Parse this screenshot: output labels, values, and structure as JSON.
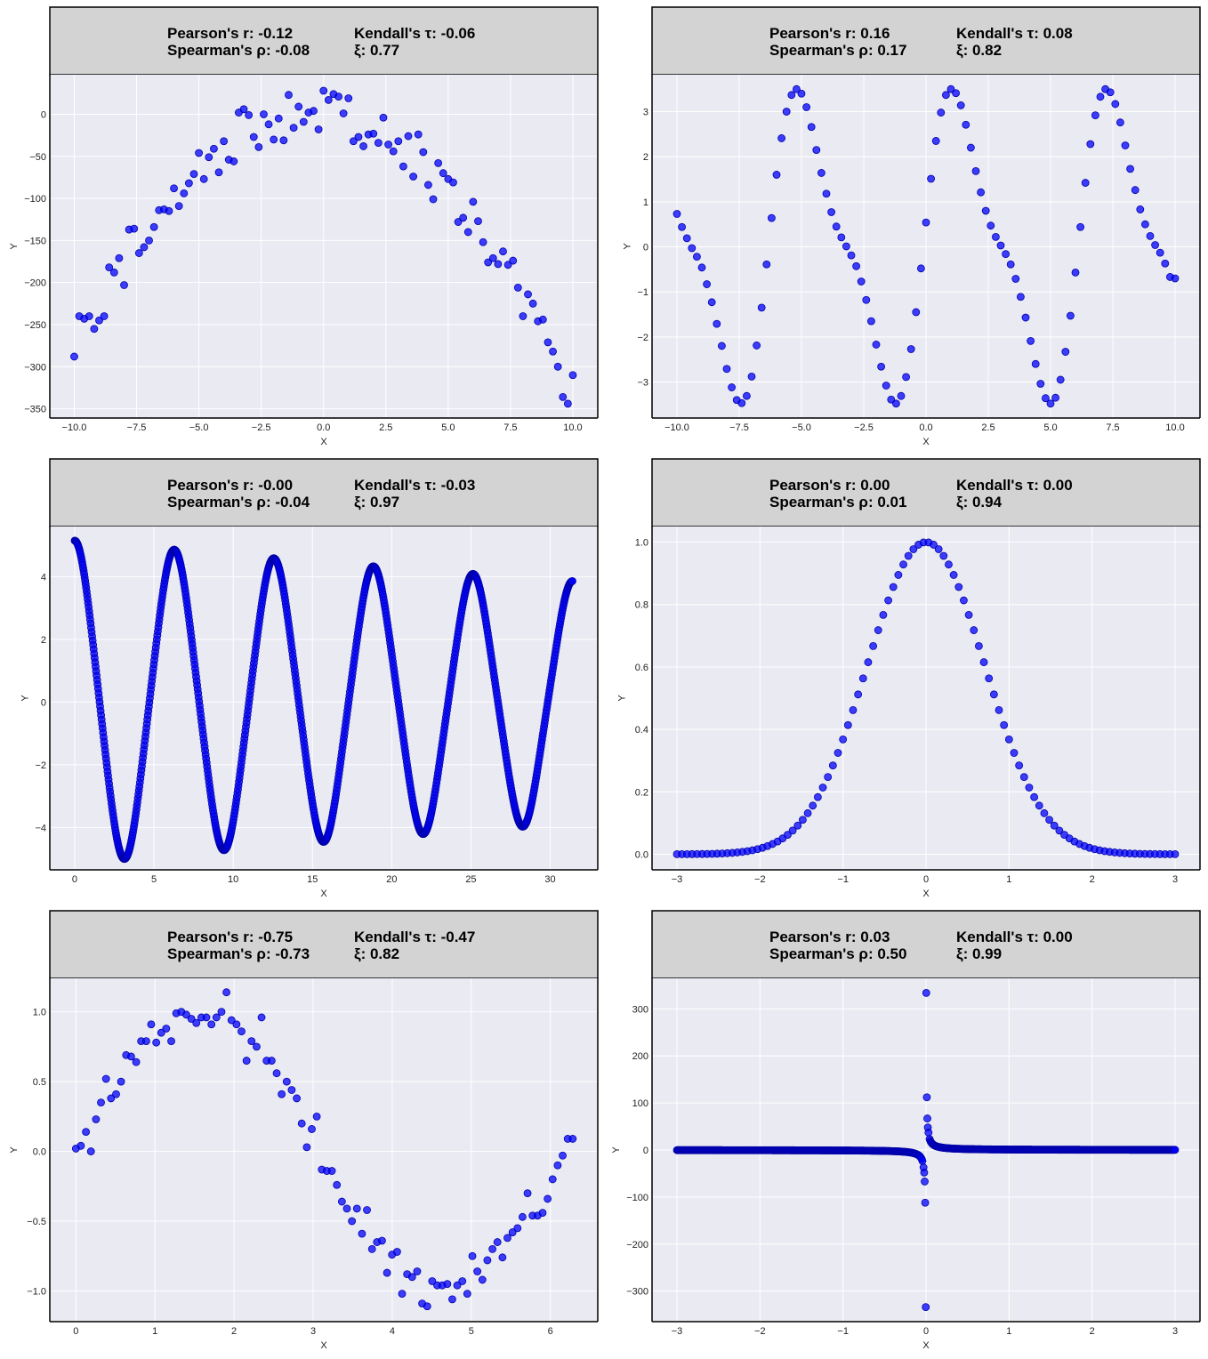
{
  "panel_color": "#eaeaf2",
  "header_color": "#d3d3d3",
  "point_color": "#0000ff",
  "chart_data": [
    {
      "type": "scatter",
      "title": "",
      "xlabel": "X",
      "ylabel": "Y",
      "stats": {
        "pearson": "Pearson's r: -0.12",
        "kendall": "Kendall's τ: -0.06",
        "spearman": "Spearman's ρ: -0.08",
        "xi": "ξ: 0.77"
      },
      "xlim": [
        -10.98,
        11.0
      ],
      "ylim": [
        -361,
        47
      ],
      "xticks": [
        -10.0,
        -7.5,
        -5.0,
        -2.5,
        0.0,
        2.5,
        5.0,
        7.5,
        10.0
      ],
      "xtick_labels": [
        "−10.0",
        "−7.5",
        "−5.0",
        "−2.5",
        "0.0",
        "2.5",
        "5.0",
        "7.5",
        "10.0"
      ],
      "yticks": [
        0,
        -50,
        -100,
        -150,
        -200,
        -250,
        -300,
        -350
      ],
      "ytick_labels": [
        "0",
        "−50",
        "−100",
        "−150",
        "−200",
        "−250",
        "−300",
        "−350"
      ],
      "grid": true,
      "x": [
        -10.0,
        -9.8,
        -9.6,
        -9.4,
        -9.2,
        -9.0,
        -8.8,
        -8.6,
        -8.4,
        -8.2,
        -8.0,
        -7.8,
        -7.6,
        -7.4,
        -7.2,
        -7.0,
        -6.8,
        -6.6,
        -6.4,
        -6.2,
        -6.0,
        -5.8,
        -5.6,
        -5.4,
        -5.2,
        -5.0,
        -4.8,
        -4.6,
        -4.4,
        -4.2,
        -4.0,
        -3.8,
        -3.6,
        -3.4,
        -3.2,
        -3.0,
        -2.8,
        -2.6,
        -2.4,
        -2.2,
        -2.0,
        -1.8,
        -1.6,
        -1.4,
        -1.2,
        -1.0,
        -0.8,
        -0.6,
        -0.4,
        -0.2,
        0.0,
        0.2,
        0.4,
        0.6,
        0.8,
        1.0,
        1.2,
        1.4,
        1.6,
        1.8,
        2.0,
        2.2,
        2.4,
        2.6,
        2.8,
        3.0,
        3.2,
        3.4,
        3.6,
        3.8,
        4.0,
        4.2,
        4.4,
        4.6,
        4.8,
        5.0,
        5.2,
        5.4,
        5.6,
        5.8,
        6.0,
        6.2,
        6.4,
        6.6,
        6.8,
        7.0,
        7.2,
        7.4,
        7.6,
        7.8,
        8.0,
        8.2,
        8.4,
        8.6,
        8.8,
        9.0,
        9.2,
        9.4,
        9.6,
        9.8,
        10.0
      ],
      "y": [
        -288,
        -240,
        -243,
        -240,
        -255,
        -245,
        -240,
        -182,
        -188,
        -171,
        -203,
        -137,
        -136,
        -165,
        -158,
        -150,
        -134,
        -114,
        -113,
        -115,
        -88,
        -109,
        -94,
        -82,
        -71,
        -46,
        -77,
        -51,
        -41,
        -69,
        -32,
        -54,
        -56,
        2,
        6,
        -1,
        -27,
        -39,
        0,
        -12,
        -30,
        -5,
        -31,
        23,
        -16,
        9,
        -9,
        2,
        4,
        -18,
        28,
        17,
        24,
        21,
        1,
        19,
        -32,
        -27,
        -38,
        -24,
        -23,
        -34,
        -4,
        -36,
        -44,
        -32,
        -62,
        -26,
        -74,
        -24,
        -45,
        -84,
        -101,
        -58,
        -70,
        -77,
        -81,
        -128,
        -123,
        -140,
        -104,
        -127,
        -152,
        -176,
        -171,
        -178,
        -163,
        -179,
        -174,
        -206,
        -240,
        -214,
        -225,
        -246,
        -244,
        -271,
        -282,
        -300,
        -336,
        -344,
        -310
      ]
    },
    {
      "type": "scatter",
      "title": "",
      "xlabel": "X",
      "ylabel": "Y",
      "stats": {
        "pearson": "Pearson's r: 0.16",
        "kendall": "Kendall's τ: 0.08",
        "spearman": "Spearman's ρ: 0.17",
        "xi": "ξ: 0.82"
      },
      "xlim": [
        -11.0,
        11.0
      ],
      "ylim": [
        -3.8,
        3.82
      ],
      "xticks": [
        -10.0,
        -7.5,
        -5.0,
        -2.5,
        0.0,
        2.5,
        5.0,
        7.5,
        10.0
      ],
      "xtick_labels": [
        "−10.0",
        "−7.5",
        "−5.0",
        "−2.5",
        "0.0",
        "2.5",
        "5.0",
        "7.5",
        "10.0"
      ],
      "yticks": [
        3,
        2,
        1,
        0,
        -1,
        -2,
        -3
      ],
      "ytick_labels": [
        "3",
        "2",
        "1",
        "0",
        "−1",
        "−2",
        "−3"
      ],
      "grid": true,
      "x": [
        -10.0,
        -9.8,
        -9.6,
        -9.4,
        -9.2,
        -9.0,
        -8.8,
        -8.6,
        -8.4,
        -8.2,
        -8.0,
        -7.8,
        -7.6,
        -7.4,
        -7.2,
        -7.0,
        -6.8,
        -6.6,
        -6.4,
        -6.2,
        -6.0,
        -5.8,
        -5.6,
        -5.4,
        -5.2,
        -5.0,
        -4.8,
        -4.6,
        -4.4,
        -4.2,
        -4.0,
        -3.8,
        -3.6,
        -3.4,
        -3.2,
        -3.0,
        -2.8,
        -2.6,
        -2.4,
        -2.2,
        -2.0,
        -1.8,
        -1.6,
        -1.4,
        -1.2,
        -1.0,
        -0.8,
        -0.6,
        -0.4,
        -0.2,
        0.0,
        0.2,
        0.4,
        0.6,
        0.8,
        1.0,
        1.2,
        1.4,
        1.6,
        1.8,
        2.0,
        2.2,
        2.4,
        2.6,
        2.8,
        3.0,
        3.2,
        3.4,
        3.6,
        3.8,
        4.0,
        4.2,
        4.4,
        4.6,
        4.8,
        5.0,
        5.2,
        5.4,
        5.6,
        5.8,
        6.0,
        6.2,
        6.4,
        6.6,
        6.8,
        7.0,
        7.2,
        7.4,
        7.6,
        7.8,
        8.0,
        8.2,
        8.4,
        8.6,
        8.8,
        9.0,
        9.2,
        9.4,
        9.6,
        9.8,
        10.0
      ],
      "y": [
        0.73,
        0.44,
        0.19,
        -0.03,
        -0.22,
        -0.46,
        -0.83,
        -1.23,
        -1.71,
        -2.2,
        -2.71,
        -3.12,
        -3.4,
        -3.47,
        -3.31,
        -2.88,
        -2.19,
        -1.35,
        -0.39,
        0.64,
        1.6,
        2.41,
        3.0,
        3.37,
        3.5,
        3.4,
        3.1,
        2.66,
        2.15,
        1.64,
        1.18,
        0.77,
        0.45,
        0.21,
        0.01,
        -0.19,
        -0.43,
        -0.77,
        -1.18,
        -1.65,
        -2.17,
        -2.66,
        -3.08,
        -3.39,
        -3.48,
        -3.31,
        -2.89,
        -2.27,
        -1.45,
        -0.48,
        0.54,
        1.51,
        2.35,
        2.98,
        3.37,
        3.5,
        3.41,
        3.14,
        2.71,
        2.2,
        1.68,
        1.21,
        0.8,
        0.47,
        0.22,
        0.03,
        -0.16,
        -0.39,
        -0.71,
        -1.11,
        -1.57,
        -2.09,
        -2.6,
        -3.04,
        -3.36,
        -3.48,
        -3.35,
        -2.95,
        -2.33,
        -1.53,
        -0.57,
        0.44,
        1.42,
        2.28,
        2.92,
        3.33,
        3.5,
        3.43,
        3.17,
        2.76,
        2.25,
        1.73,
        1.26,
        0.83,
        0.5,
        0.24,
        0.04,
        -0.13,
        -0.37,
        -0.67,
        -0.7
      ]
    },
    {
      "type": "scatter",
      "title": "",
      "xlabel": "X",
      "ylabel": "Y",
      "stats": {
        "pearson": "Pearson's r: -0.00",
        "kendall": "Kendall's τ: -0.03",
        "spearman": "Spearman's ρ: -0.04",
        "xi": "ξ: 0.97"
      },
      "xlim": [
        -1.57,
        33.0
      ],
      "ylim": [
        -5.35,
        5.6
      ],
      "xticks": [
        0,
        5,
        10,
        15,
        20,
        25,
        30
      ],
      "xtick_labels": [
        "0",
        "5",
        "10",
        "15",
        "20",
        "25",
        "30"
      ],
      "yticks": [
        4,
        2,
        0,
        -2,
        -4
      ],
      "ytick_labels": [
        "4",
        "2",
        "0",
        "−2",
        "−4"
      ],
      "grid": true,
      "curve": {
        "description": "dense damped cosine",
        "x_start": 0.0,
        "x_end": 31.4,
        "amplitude_start": 5.0,
        "amplitude_end": 3.7,
        "period": 6.283
      }
    },
    {
      "type": "scatter",
      "title": "",
      "xlabel": "X",
      "ylabel": "Y",
      "stats": {
        "pearson": "Pearson's r: 0.00",
        "kendall": "Kendall's τ: 0.00",
        "spearman": "Spearman's ρ: 0.01",
        "xi": "ξ: 0.94"
      },
      "xlim": [
        -3.3,
        3.3
      ],
      "ylim": [
        -0.05,
        1.05
      ],
      "xticks": [
        -3,
        -2,
        -1,
        0,
        1,
        2,
        3
      ],
      "xtick_labels": [
        "−3",
        "−2",
        "−1",
        "0",
        "1",
        "2",
        "3"
      ],
      "yticks": [
        1.0,
        0.8,
        0.6,
        0.4,
        0.2,
        0.0
      ],
      "ytick_labels": [
        "1.0",
        "0.8",
        "0.6",
        "0.4",
        "0.2",
        "0.0"
      ],
      "grid": true,
      "curve": {
        "description": "gaussian exp(-x^2)",
        "x_start": -3.0,
        "x_end": 3.0,
        "points": 100
      }
    },
    {
      "type": "scatter",
      "title": "",
      "xlabel": "X",
      "ylabel": "Y",
      "stats": {
        "pearson": "Pearson's r: -0.75",
        "kendall": "Kendall's τ: -0.47",
        "spearman": "Spearman's ρ: -0.73",
        "xi": "ξ: 0.82"
      },
      "xlim": [
        -0.33,
        6.6
      ],
      "ylim": [
        -1.22,
        1.24
      ],
      "xticks": [
        0,
        1,
        2,
        3,
        4,
        5,
        6
      ],
      "xtick_labels": [
        "0",
        "1",
        "2",
        "3",
        "4",
        "5",
        "6"
      ],
      "yticks": [
        1.0,
        0.5,
        0.0,
        -0.5,
        -1.0
      ],
      "ytick_labels": [
        "1.0",
        "0.5",
        "0.0",
        "−0.5",
        "−1.0"
      ],
      "grid": true,
      "x": [
        0.0,
        0.063,
        0.127,
        0.19,
        0.254,
        0.317,
        0.381,
        0.444,
        0.508,
        0.571,
        0.635,
        0.698,
        0.762,
        0.825,
        0.889,
        0.952,
        1.016,
        1.079,
        1.142,
        1.206,
        1.269,
        1.333,
        1.396,
        1.46,
        1.523,
        1.587,
        1.65,
        1.714,
        1.777,
        1.841,
        1.904,
        1.968,
        2.031,
        2.094,
        2.158,
        2.221,
        2.285,
        2.348,
        2.412,
        2.475,
        2.539,
        2.602,
        2.666,
        2.729,
        2.793,
        2.856,
        2.92,
        2.983,
        3.046,
        3.11,
        3.173,
        3.237,
        3.3,
        3.364,
        3.427,
        3.491,
        3.554,
        3.618,
        3.681,
        3.745,
        3.808,
        3.871,
        3.935,
        3.998,
        4.062,
        4.125,
        4.189,
        4.252,
        4.316,
        4.379,
        4.443,
        4.506,
        4.57,
        4.633,
        4.697,
        4.76,
        4.823,
        4.887,
        4.95,
        5.014,
        5.077,
        5.141,
        5.204,
        5.268,
        5.331,
        5.395,
        5.458,
        5.522,
        5.585,
        5.648,
        5.712,
        5.775,
        5.839,
        5.902,
        5.966,
        6.029,
        6.093,
        6.156,
        6.22,
        6.283
      ],
      "y": [
        0.02,
        0.04,
        0.14,
        0.0,
        0.23,
        0.35,
        0.52,
        0.38,
        0.41,
        0.5,
        0.69,
        0.68,
        0.64,
        0.79,
        0.79,
        0.91,
        0.78,
        0.85,
        0.88,
        0.79,
        0.99,
        1.0,
        0.98,
        0.95,
        0.92,
        0.96,
        0.96,
        0.91,
        0.96,
        1.0,
        1.14,
        0.94,
        0.91,
        0.86,
        0.65,
        0.79,
        0.75,
        0.96,
        0.65,
        0.65,
        0.56,
        0.41,
        0.5,
        0.44,
        0.38,
        0.2,
        0.03,
        0.16,
        0.25,
        -0.13,
        -0.14,
        -0.14,
        -0.24,
        -0.36,
        -0.41,
        -0.5,
        -0.41,
        -0.59,
        -0.42,
        -0.7,
        -0.65,
        -0.64,
        -0.87,
        -0.74,
        -0.72,
        -1.02,
        -0.88,
        -0.9,
        -0.86,
        -1.09,
        -1.11,
        -0.93,
        -0.96,
        -0.96,
        -0.95,
        -1.06,
        -0.96,
        -0.93,
        -1.02,
        -0.75,
        -0.86,
        -0.92,
        -0.78,
        -0.7,
        -0.65,
        -0.76,
        -0.62,
        -0.58,
        -0.55,
        -0.47,
        -0.3,
        -0.46,
        -0.46,
        -0.44,
        -0.34,
        -0.2,
        -0.1,
        -0.03,
        0.09,
        0.09
      ]
    },
    {
      "type": "scatter",
      "title": "",
      "xlabel": "X",
      "ylabel": "Y",
      "stats": {
        "pearson": "Pearson's r: 0.03",
        "kendall": "Kendall's τ: 0.00",
        "spearman": "Spearman's ρ: 0.50",
        "xi": "ξ: 0.99"
      },
      "xlim": [
        -3.3,
        3.3
      ],
      "ylim": [
        -365,
        365
      ],
      "xticks": [
        -3,
        -2,
        -1,
        0,
        1,
        2,
        3
      ],
      "xtick_labels": [
        "−3",
        "−2",
        "−1",
        "0",
        "1",
        "2",
        "3"
      ],
      "yticks": [
        300,
        200,
        100,
        0,
        -100,
        -200,
        -300
      ],
      "ytick_labels": [
        "300",
        "200",
        "100",
        "0",
        "−100",
        "−200",
        "−300"
      ],
      "grid": true,
      "curve": {
        "description": "dense reciprocal 1/x",
        "x_start": -3.0,
        "x_end": 3.0
      },
      "extra_points": [
        [
          0.003,
          334
        ],
        [
          0.01,
          112
        ],
        [
          0.016,
          67
        ],
        [
          0.022,
          48
        ],
        [
          0.03,
          37
        ],
        [
          -0.003,
          -334
        ],
        [
          -0.01,
          -112
        ],
        [
          -0.016,
          -67
        ],
        [
          -0.022,
          -48
        ],
        [
          -0.03,
          -37
        ]
      ]
    }
  ]
}
